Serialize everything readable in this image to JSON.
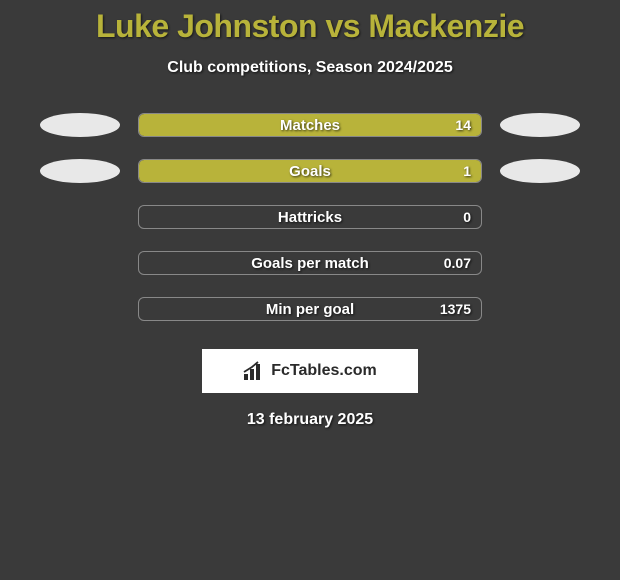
{
  "title": "Luke Johnston vs Mackenzie",
  "subtitle": "Club competitions, Season 2024/2025",
  "background_color": "#3a3a3a",
  "title_color": "#b8b33a",
  "text_color": "#ffffff",
  "ellipse_color": "#e8e8e8",
  "bar_border_color": "#888888",
  "fill_color": "#b8b33a",
  "stats": [
    {
      "label": "Matches",
      "value": "14",
      "fill_pct": 100,
      "show_ellipses": true
    },
    {
      "label": "Goals",
      "value": "1",
      "fill_pct": 100,
      "show_ellipses": true
    },
    {
      "label": "Hattricks",
      "value": "0",
      "fill_pct": 0,
      "show_ellipses": false
    },
    {
      "label": "Goals per match",
      "value": "0.07",
      "fill_pct": 0,
      "show_ellipses": false
    },
    {
      "label": "Min per goal",
      "value": "1375",
      "fill_pct": 0,
      "show_ellipses": false
    }
  ],
  "footer": {
    "brand_text": "FcTables.com",
    "icon_name": "bars-icon"
  },
  "date_text": "13 february 2025",
  "title_fontsize": 32,
  "subtitle_fontsize": 16,
  "bar_label_fontsize": 15,
  "bar_value_fontsize": 14,
  "footer_fontsize": 16,
  "date_fontsize": 16
}
